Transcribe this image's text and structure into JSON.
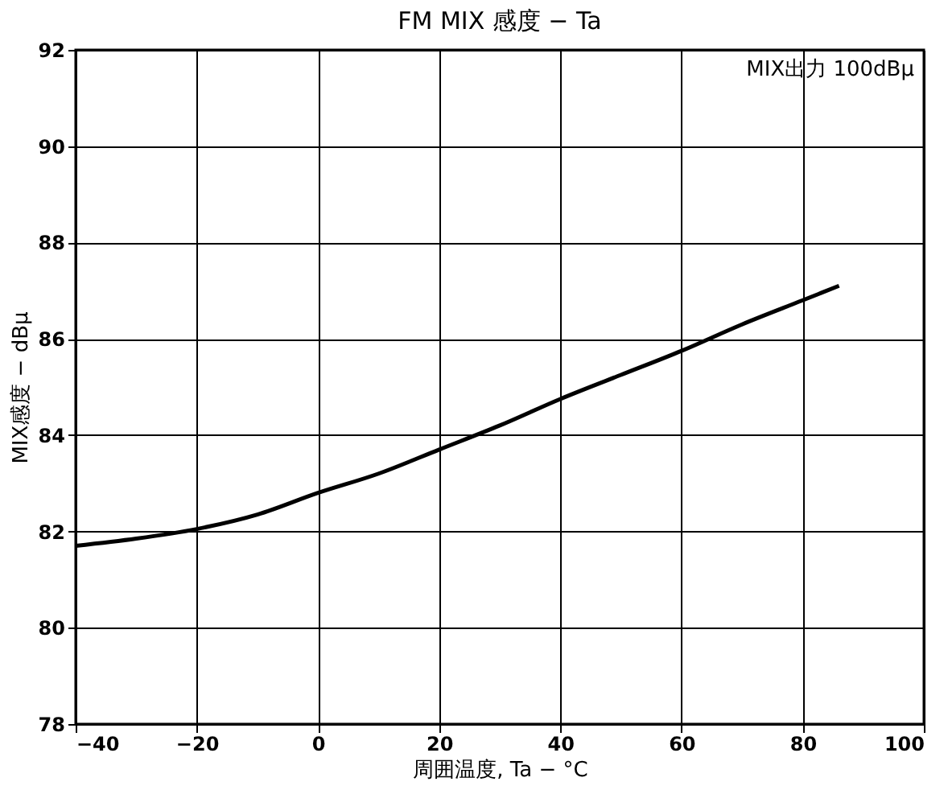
{
  "chart_data": {
    "type": "line",
    "title": "FM MIX 感度 − Ta",
    "xlabel": "周囲温度, Ta − °C",
    "ylabel": "MIX感度 − dBμ",
    "annotations": [
      "MIX出力 100dBμ"
    ],
    "x": [
      -40,
      -30,
      -20,
      -10,
      0,
      10,
      20,
      30,
      40,
      50,
      60,
      70,
      80,
      86
    ],
    "series": [
      {
        "color": "#000000",
        "values": [
          81.7,
          81.85,
          82.05,
          82.35,
          82.8,
          83.2,
          83.7,
          84.2,
          84.75,
          85.25,
          85.75,
          86.3,
          86.8,
          87.1
        ]
      }
    ],
    "xlim": [
      -40,
      100
    ],
    "xticks": [
      -40,
      -20,
      0,
      20,
      40,
      60,
      80,
      100
    ],
    "ylim": [
      78,
      92
    ],
    "yticks": [
      78,
      80,
      82,
      84,
      86,
      88,
      90,
      92
    ],
    "grid": true,
    "marker": "none",
    "line_style": "solid",
    "legend": false
  }
}
